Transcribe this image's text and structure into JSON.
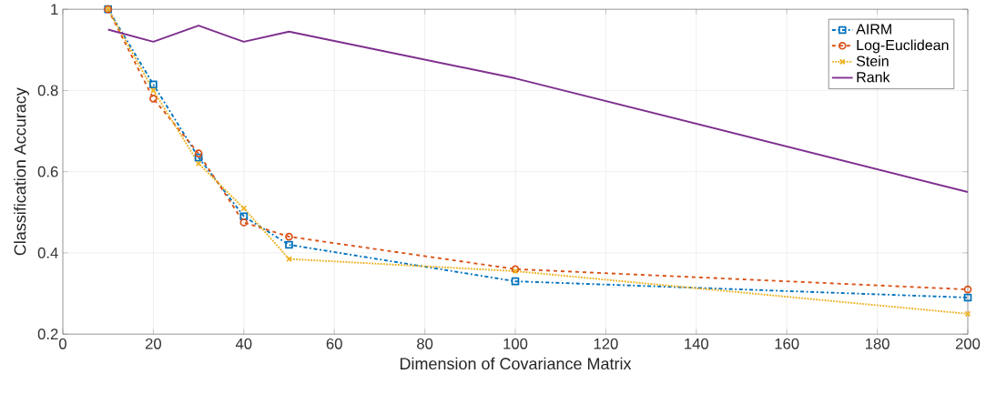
{
  "chart_data": {
    "type": "line",
    "xlabel": "Dimension of Covariance Matrix",
    "ylabel": "Classification Accuracy",
    "xlim": [
      0,
      200
    ],
    "xticks": [
      0,
      20,
      40,
      60,
      80,
      100,
      120,
      140,
      160,
      180,
      200
    ],
    "ylim": [
      0.2,
      1
    ],
    "yticks": [
      0.2,
      0.4,
      0.6,
      0.8,
      1
    ],
    "grid": true,
    "legend": "top right",
    "series": [
      {
        "name": "AIRM",
        "color": "#0072bd",
        "marker": "square",
        "line_style": "dashdot",
        "x": [
          10,
          20,
          30,
          40,
          50,
          100,
          200
        ],
        "values": [
          1.0,
          0.815,
          0.635,
          0.49,
          0.42,
          0.33,
          0.29
        ]
      },
      {
        "name": "Log-Euclidean",
        "color": "#d95319",
        "marker": "circle",
        "line_style": "dashed",
        "x": [
          10,
          20,
          30,
          40,
          50,
          100,
          200
        ],
        "values": [
          1.0,
          0.78,
          0.645,
          0.475,
          0.44,
          0.36,
          0.31
        ]
      },
      {
        "name": "Stein",
        "color": "#edb120",
        "marker": "cross",
        "line_style": "dotted",
        "x": [
          10,
          20,
          30,
          40,
          50,
          100,
          200
        ],
        "values": [
          1.0,
          0.8,
          0.62,
          0.51,
          0.385,
          0.355,
          0.25
        ]
      },
      {
        "name": "Rank",
        "color": "#7e2f8e",
        "marker": "none",
        "line_style": "solid",
        "x": [
          10,
          20,
          30,
          40,
          50,
          100,
          200
        ],
        "values": [
          0.95,
          0.92,
          0.96,
          0.92,
          0.945,
          0.83,
          0.55
        ]
      }
    ]
  }
}
